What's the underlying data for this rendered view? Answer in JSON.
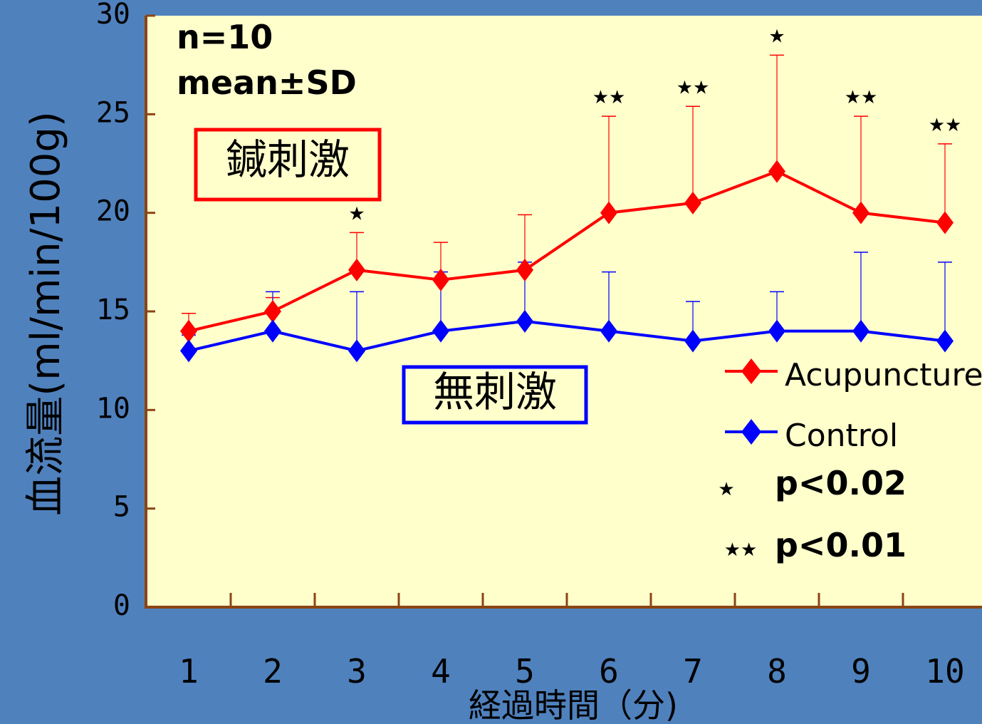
{
  "chart_data": {
    "type": "line",
    "categories": [
      "1",
      "2",
      "3",
      "4",
      "5",
      "6",
      "7",
      "8",
      "9",
      "10"
    ],
    "x": [
      1,
      2,
      3,
      4,
      5,
      6,
      7,
      8,
      9,
      10
    ],
    "xlabel": "経過時間（分)",
    "ylabel": "血流量(ml/min/100g)",
    "ylim": [
      0,
      30
    ],
    "yticks": [
      0,
      5,
      10,
      15,
      20,
      25,
      30
    ],
    "notes": [
      "n=10",
      "mean±SD"
    ],
    "series": [
      {
        "name": "Acupuncture",
        "color": "#ff0000",
        "values": [
          14,
          15,
          17.1,
          16.6,
          17.1,
          20,
          20.5,
          22.1,
          20,
          19.5
        ],
        "sd": [
          0.9,
          0.7,
          1.9,
          1.9,
          2.8,
          4.9,
          4.9,
          5.9,
          4.9,
          4.0
        ]
      },
      {
        "name": "Control",
        "color": "#0000ff",
        "values": [
          13,
          14,
          13,
          14,
          14.5,
          14,
          13.5,
          14,
          14,
          13.5
        ],
        "sd": [
          0.8,
          2.0,
          3.0,
          3.0,
          3.0,
          3.0,
          2.0,
          2.0,
          4.0,
          4.0
        ]
      }
    ],
    "significance": [
      {
        "x": 3,
        "marker": "★"
      },
      {
        "x": 6,
        "marker": "★★"
      },
      {
        "x": 7,
        "marker": "★★"
      },
      {
        "x": 8,
        "marker": "★"
      },
      {
        "x": 9,
        "marker": "★★"
      },
      {
        "x": 10,
        "marker": "★★"
      }
    ],
    "significance_legend": [
      {
        "marker": "★",
        "label": "p<0.02"
      },
      {
        "marker": "★★",
        "label": "p<0.01"
      }
    ],
    "annotations": [
      {
        "text": "鍼刺激",
        "color": "#ff0000"
      },
      {
        "text": "無刺激",
        "color": "#0000ff"
      }
    ],
    "grid": false,
    "legend_position": "bottom-right",
    "background_color": "#ffffcc",
    "page_color": "#4f81bd",
    "axis_color": "#8b4513"
  }
}
